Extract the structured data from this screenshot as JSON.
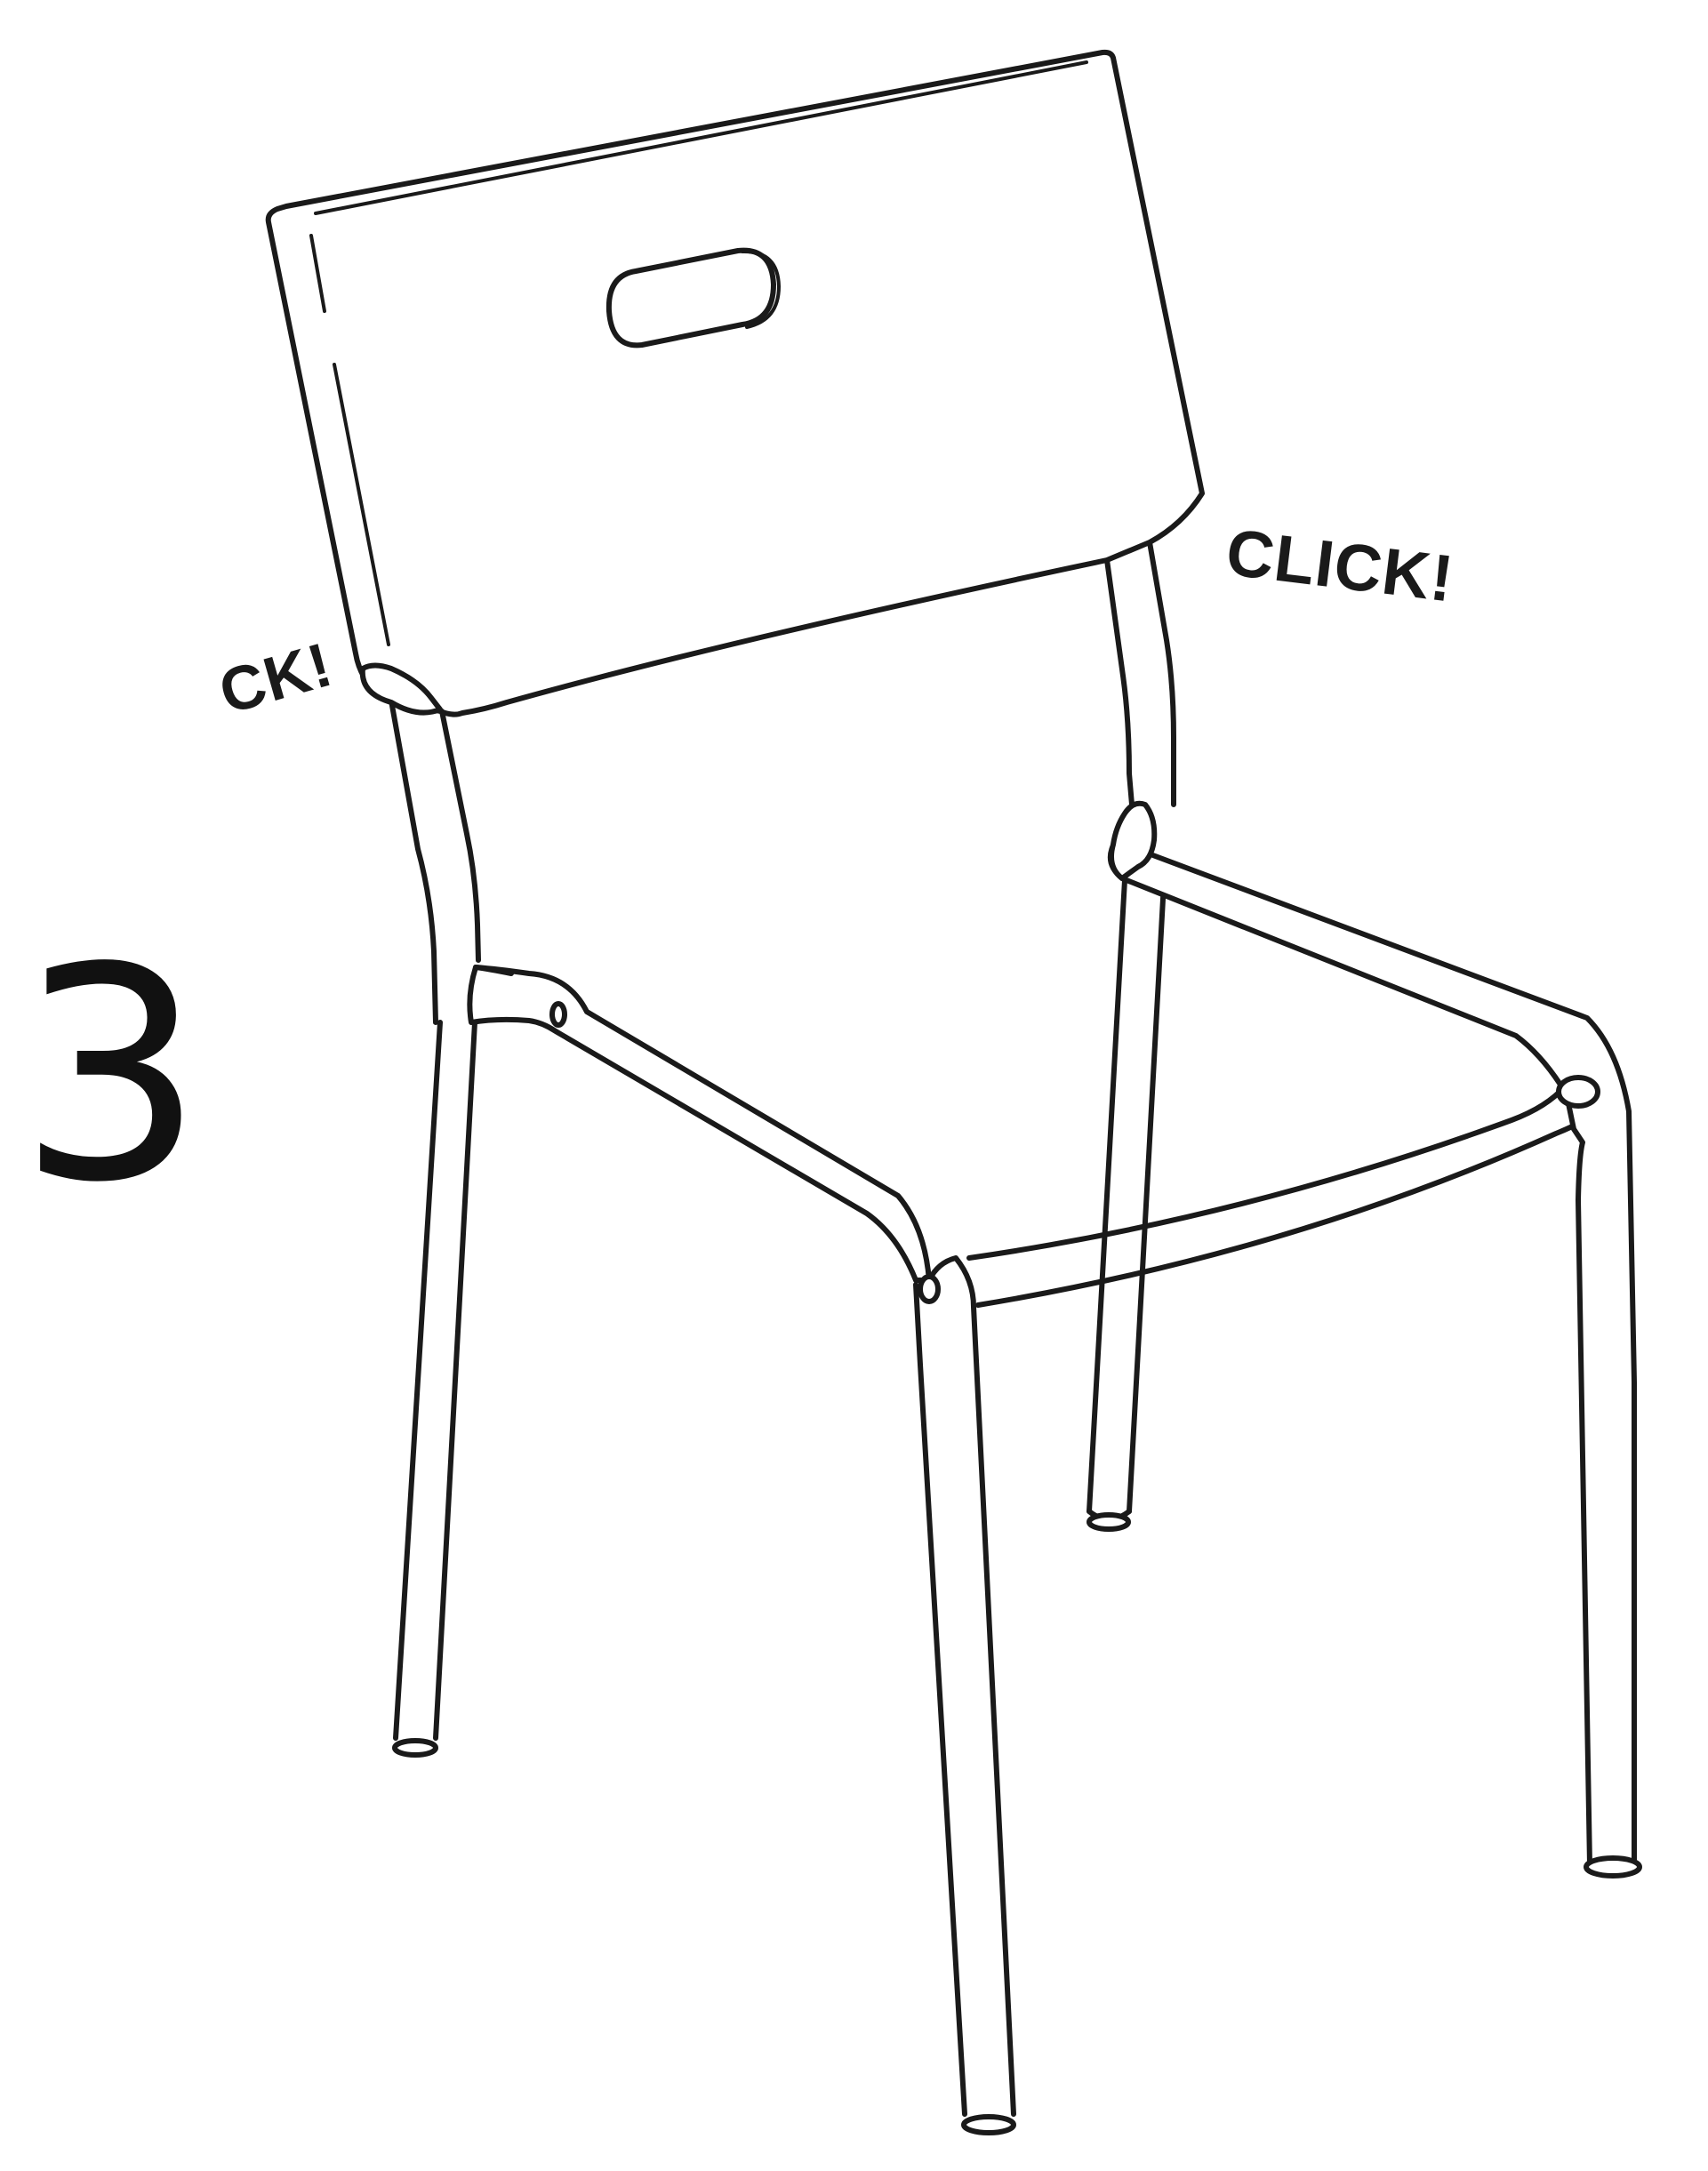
{
  "step": {
    "number": "3"
  },
  "annotations": {
    "click_right": "CLICK!",
    "click_left": "CK!"
  },
  "colors": {
    "line": "#1a1a1a",
    "background": "#ffffff"
  }
}
